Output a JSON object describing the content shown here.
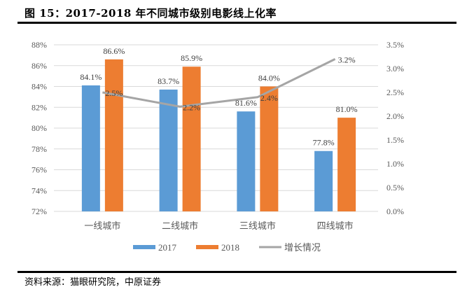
{
  "header": {
    "title": "图 15：2017-2018 年不同城市级别电影线上化率"
  },
  "footer": {
    "source": "资料来源：猫眼研究院，中原证券"
  },
  "chart_data": {
    "type": "bar",
    "title": "2017-2018 年不同城市级别电影线上化率",
    "categories": [
      "一线城市",
      "二线城市",
      "三线城市",
      "四线城市"
    ],
    "series": [
      {
        "name": "2017",
        "type": "bar",
        "axis": "left",
        "color": "#5B9BD5",
        "values": [
          84.1,
          83.7,
          81.6,
          77.8
        ],
        "labels": [
          "84.1%",
          "83.7%",
          "81.6%",
          "77.8%"
        ]
      },
      {
        "name": "2018",
        "type": "bar",
        "axis": "left",
        "color": "#ED7D31",
        "values": [
          86.6,
          85.9,
          84.0,
          81.0
        ],
        "labels": [
          "86.6%",
          "85.9%",
          "84.0%",
          "81.0%"
        ]
      },
      {
        "name": "增长情况",
        "type": "line",
        "axis": "right",
        "color": "#A5A5A5",
        "values": [
          2.5,
          2.2,
          2.4,
          3.2
        ],
        "labels": [
          "2.5%",
          "2.2%",
          "2.4%",
          "3.2%"
        ]
      }
    ],
    "y_left": {
      "min": 72,
      "max": 88,
      "step": 2,
      "ticks": [
        "72%",
        "74%",
        "76%",
        "78%",
        "80%",
        "82%",
        "84%",
        "86%",
        "88%"
      ]
    },
    "y_right": {
      "min": 0,
      "max": 3.5,
      "step": 0.5,
      "ticks": [
        "0.0%",
        "0.5%",
        "1.0%",
        "1.5%",
        "2.0%",
        "2.5%",
        "3.0%",
        "3.5%"
      ]
    },
    "xlabel": "",
    "ylabel": "",
    "grid": true,
    "legend": {
      "position": "bottom",
      "items": [
        "2017",
        "2018",
        "增长情况"
      ]
    },
    "gridline_color": "#D9D9D9"
  }
}
